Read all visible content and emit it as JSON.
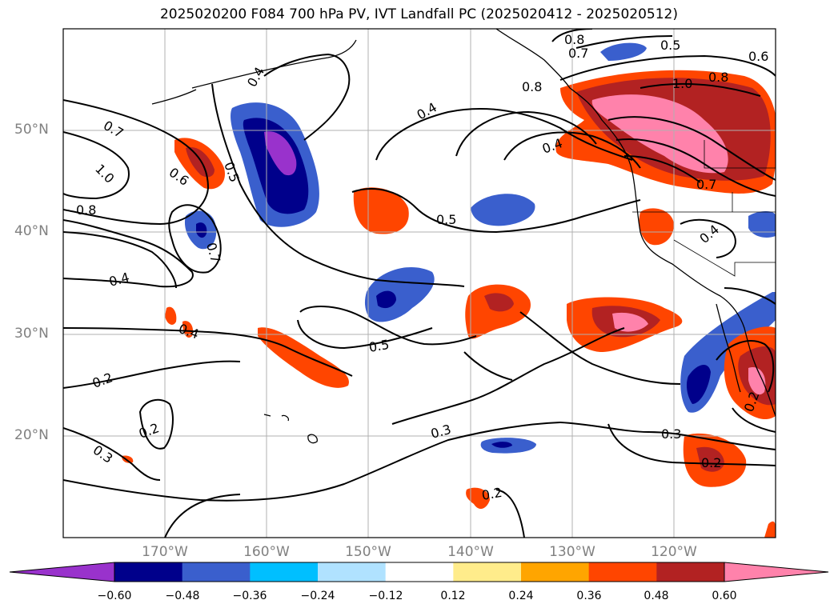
{
  "title": "2025020200 F084 700 hPa PV, IVT Landfall PC (2025020412 - 2025020512)",
  "lat_labels": [
    "50°N",
    "40°N",
    "30°N",
    "20°N"
  ],
  "lon_labels": [
    "170°W",
    "160°W",
    "150°W",
    "140°W",
    "130°W",
    "120°W"
  ],
  "colorbar": {
    "tick_labels": [
      "−0.60",
      "−0.48",
      "−0.36",
      "−0.24",
      "−0.12",
      "0.12",
      "0.24",
      "0.36",
      "0.48",
      "0.60"
    ],
    "colors": [
      "#9932cc",
      "#00008b",
      "#3a5fcd",
      "#00bfff",
      "#b0e2ff",
      "#ffffff",
      "#ffec8b",
      "#ffa500",
      "#ff4500",
      "#b22222",
      "#ff82ab"
    ]
  },
  "contour_labels": [
    "0.7",
    "1.0",
    "0.8",
    "0.6",
    "0.5",
    "0.4",
    "0.7",
    "0.4",
    "0.4",
    "0.2",
    "0.2",
    "0.3",
    "0.5",
    "0.4",
    "0.5",
    "0.3",
    "0.2",
    "0.8",
    "0.7",
    "0.8",
    "0.5",
    "0.6",
    "1.0",
    "0.8",
    "0.7",
    "0.4",
    "0.4",
    "0.3",
    "0.2",
    "0.2"
  ]
}
